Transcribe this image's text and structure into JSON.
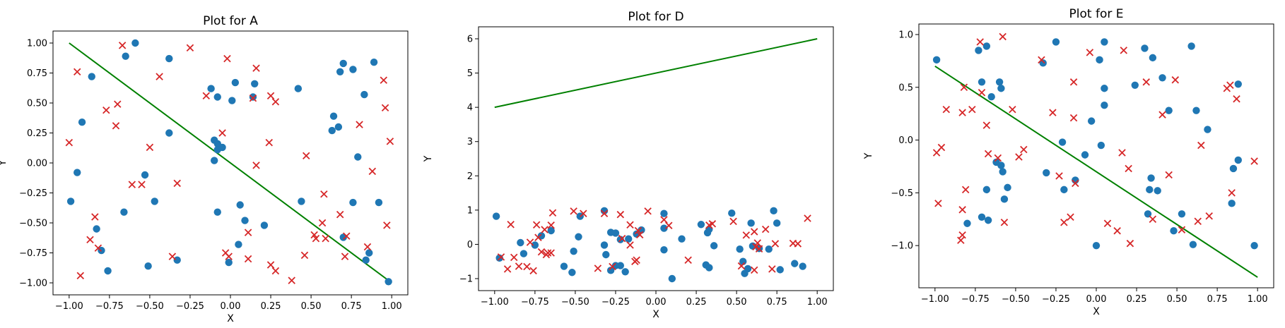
{
  "colors": {
    "points": "#1f77b4",
    "crosses": "#d62728",
    "line": "#008000",
    "axes": "#000000"
  },
  "chart_data": [
    {
      "type": "scatter",
      "title": "Plot for A",
      "xlabel": "X",
      "ylabel": "Y",
      "xlim": [
        -1.1,
        1.1
      ],
      "ylim": [
        -1.1,
        1.1
      ],
      "xticks": [
        -1.0,
        -0.75,
        -0.5,
        -0.25,
        0.0,
        0.25,
        0.5,
        0.75,
        1.0
      ],
      "xtick_labels": [
        "−1.00",
        "−0.75",
        "−0.50",
        "−0.25",
        "0.00",
        "0.25",
        "0.50",
        "0.75",
        "1.00"
      ],
      "yticks": [
        1.0,
        0.75,
        0.5,
        0.25,
        0.0,
        -0.25,
        -0.5,
        -0.75,
        -1.0
      ],
      "ytick_labels": [
        "1.00",
        "0.75",
        "0.50",
        "0.25",
        "0.00",
        "−0.25",
        "−0.50",
        "−0.75",
        "−1.00"
      ],
      "grid": false,
      "line": {
        "x": [
          -1.0,
          1.0
        ],
        "y": [
          1.0,
          -1.0
        ]
      },
      "points": [
        [
          -0.99,
          -0.32
        ],
        [
          -0.95,
          -0.08
        ],
        [
          -0.92,
          0.34
        ],
        [
          -0.86,
          0.72
        ],
        [
          -0.83,
          -0.55
        ],
        [
          -0.8,
          -0.73
        ],
        [
          -0.76,
          -0.9
        ],
        [
          -0.66,
          -0.41
        ],
        [
          -0.65,
          0.89
        ],
        [
          -0.59,
          1.0
        ],
        [
          -0.53,
          -0.1
        ],
        [
          -0.51,
          -0.86
        ],
        [
          -0.47,
          -0.32
        ],
        [
          -0.38,
          0.87
        ],
        [
          -0.38,
          0.25
        ],
        [
          -0.33,
          -0.81
        ],
        [
          -0.12,
          0.62
        ],
        [
          -0.08,
          0.55
        ],
        [
          -0.1,
          0.19
        ],
        [
          -0.08,
          0.16
        ],
        [
          -0.1,
          0.02
        ],
        [
          -0.08,
          0.11
        ],
        [
          -0.05,
          0.13
        ],
        [
          -0.08,
          -0.41
        ],
        [
          0.01,
          0.52
        ],
        [
          0.03,
          0.67
        ],
        [
          0.06,
          -0.35
        ],
        [
          0.05,
          -0.68
        ],
        [
          0.09,
          -0.48
        ],
        [
          0.14,
          0.55
        ],
        [
          0.15,
          0.66
        ],
        [
          0.21,
          -0.52
        ],
        [
          -0.01,
          -0.83
        ],
        [
          0.42,
          0.62
        ],
        [
          0.44,
          -0.32
        ],
        [
          0.63,
          0.27
        ],
        [
          0.64,
          0.39
        ],
        [
          0.67,
          0.3
        ],
        [
          0.68,
          0.76
        ],
        [
          0.7,
          0.83
        ],
        [
          0.7,
          -0.62
        ],
        [
          0.76,
          0.78
        ],
        [
          0.76,
          -0.33
        ],
        [
          0.79,
          0.05
        ],
        [
          0.83,
          0.57
        ],
        [
          0.84,
          -0.81
        ],
        [
          0.86,
          -0.75
        ],
        [
          0.89,
          0.84
        ],
        [
          0.92,
          -0.33
        ],
        [
          0.98,
          -0.99
        ]
      ],
      "crosses": [
        [
          -1.0,
          0.17
        ],
        [
          -0.95,
          0.76
        ],
        [
          -0.93,
          -0.94
        ],
        [
          -0.87,
          -0.64
        ],
        [
          -0.84,
          -0.45
        ],
        [
          -0.82,
          -0.71
        ],
        [
          -0.77,
          0.44
        ],
        [
          -0.71,
          0.31
        ],
        [
          -0.7,
          0.49
        ],
        [
          -0.67,
          0.98
        ],
        [
          -0.61,
          -0.18
        ],
        [
          -0.55,
          -0.18
        ],
        [
          -0.5,
          0.13
        ],
        [
          -0.44,
          0.72
        ],
        [
          -0.36,
          -0.78
        ],
        [
          -0.33,
          -0.17
        ],
        [
          -0.25,
          0.96
        ],
        [
          -0.15,
          0.56
        ],
        [
          -0.05,
          0.25
        ],
        [
          -0.03,
          -0.75
        ],
        [
          -0.02,
          0.87
        ],
        [
          -0.01,
          -0.78
        ],
        [
          0.11,
          -0.58
        ],
        [
          0.11,
          -0.8
        ],
        [
          0.14,
          0.54
        ],
        [
          0.16,
          0.79
        ],
        [
          0.16,
          -0.02
        ],
        [
          0.24,
          0.17
        ],
        [
          0.25,
          0.56
        ],
        [
          0.25,
          -0.85
        ],
        [
          0.28,
          0.51
        ],
        [
          0.28,
          -0.9
        ],
        [
          0.38,
          -0.98
        ],
        [
          0.46,
          -0.77
        ],
        [
          0.47,
          0.06
        ],
        [
          0.52,
          -0.6
        ],
        [
          0.53,
          -0.63
        ],
        [
          0.57,
          -0.5
        ],
        [
          0.58,
          -0.26
        ],
        [
          0.59,
          -0.63
        ],
        [
          0.68,
          -0.43
        ],
        [
          0.71,
          -0.78
        ],
        [
          0.72,
          -0.61
        ],
        [
          0.8,
          0.32
        ],
        [
          0.85,
          -0.7
        ],
        [
          0.88,
          -0.07
        ],
        [
          0.95,
          0.69
        ],
        [
          0.96,
          0.46
        ],
        [
          0.97,
          -0.52
        ],
        [
          0.99,
          0.18
        ]
      ]
    },
    {
      "type": "scatter",
      "title": "Plot for D",
      "xlabel": "X",
      "ylabel": "Y",
      "xlim": [
        -1.1,
        1.1
      ],
      "ylim": [
        -1.35,
        6.35
      ],
      "xticks": [
        -1.0,
        -0.75,
        -0.5,
        -0.25,
        0.0,
        0.25,
        0.5,
        0.75,
        1.0
      ],
      "xtick_labels": [
        "−1.00",
        "−0.75",
        "−0.50",
        "−0.25",
        "0.00",
        "0.25",
        "0.50",
        "0.75",
        "1.00"
      ],
      "yticks": [
        6,
        5,
        4,
        3,
        2,
        1,
        0,
        -1
      ],
      "ytick_labels": [
        "6",
        "5",
        "4",
        "3",
        "2",
        "1",
        "0",
        "−1"
      ],
      "grid": false,
      "line": {
        "x": [
          -1.0,
          1.0
        ],
        "y": [
          4.0,
          6.0
        ]
      },
      "points": [
        [
          -0.99,
          0.82
        ],
        [
          -0.97,
          -0.4
        ],
        [
          -0.84,
          0.05
        ],
        [
          -0.82,
          -0.27
        ],
        [
          -0.75,
          -0.02
        ],
        [
          -0.71,
          0.25
        ],
        [
          -0.65,
          0.4
        ],
        [
          -0.57,
          -0.64
        ],
        [
          -0.52,
          -0.82
        ],
        [
          -0.51,
          -0.2
        ],
        [
          -0.48,
          0.22
        ],
        [
          -0.47,
          0.82
        ],
        [
          -0.32,
          0.98
        ],
        [
          -0.32,
          -0.02
        ],
        [
          -0.31,
          -0.3
        ],
        [
          -0.28,
          -0.76
        ],
        [
          -0.28,
          0.35
        ],
        [
          -0.25,
          -0.62
        ],
        [
          -0.25,
          0.33
        ],
        [
          -0.22,
          0.14
        ],
        [
          -0.22,
          -0.62
        ],
        [
          -0.19,
          -0.8
        ],
        [
          -0.17,
          0.16
        ],
        [
          -0.12,
          0.3
        ],
        [
          -0.09,
          0.42
        ],
        [
          0.05,
          0.47
        ],
        [
          0.05,
          -0.16
        ],
        [
          0.05,
          0.9
        ],
        [
          0.1,
          -1.0
        ],
        [
          0.16,
          0.16
        ],
        [
          0.28,
          0.58
        ],
        [
          0.31,
          -0.6
        ],
        [
          0.32,
          0.34
        ],
        [
          0.33,
          0.44
        ],
        [
          0.33,
          -0.68
        ],
        [
          0.36,
          -0.04
        ],
        [
          0.47,
          0.91
        ],
        [
          0.52,
          -0.14
        ],
        [
          0.54,
          -0.5
        ],
        [
          0.55,
          -0.85
        ],
        [
          0.57,
          -0.71
        ],
        [
          0.59,
          0.62
        ],
        [
          0.6,
          -0.05
        ],
        [
          0.64,
          -0.12
        ],
        [
          0.7,
          -0.14
        ],
        [
          0.73,
          0.98
        ],
        [
          0.75,
          0.62
        ],
        [
          0.77,
          -0.74
        ],
        [
          0.86,
          -0.56
        ],
        [
          0.91,
          -0.64
        ]
      ],
      "crosses": [
        [
          -0.96,
          -0.37
        ],
        [
          -0.92,
          -0.72
        ],
        [
          -0.9,
          0.58
        ],
        [
          -0.88,
          -0.38
        ],
        [
          -0.85,
          -0.64
        ],
        [
          -0.78,
          0.06
        ],
        [
          -0.76,
          -0.77
        ],
        [
          -0.74,
          0.57
        ],
        [
          -0.73,
          0.2
        ],
        [
          -0.71,
          -0.22
        ],
        [
          -0.69,
          0.43
        ],
        [
          -0.68,
          -0.3
        ],
        [
          -0.67,
          -0.25
        ],
        [
          -0.65,
          -0.25
        ],
        [
          -0.65,
          0.56
        ],
        [
          -0.64,
          0.92
        ],
        [
          -0.51,
          0.97
        ],
        [
          -0.45,
          0.9
        ],
        [
          -0.36,
          -0.7
        ],
        [
          -0.32,
          0.9
        ],
        [
          -0.27,
          -0.65
        ],
        [
          -0.22,
          0.87
        ],
        [
          -0.21,
          0.17
        ],
        [
          -0.16,
          0.57
        ],
        [
          -0.16,
          -0.02
        ],
        [
          -0.13,
          -0.5
        ],
        [
          -0.12,
          -0.46
        ],
        [
          -0.11,
          0.4
        ],
        [
          -0.1,
          0.28
        ],
        [
          -0.05,
          0.97
        ],
        [
          0.05,
          0.72
        ],
        [
          0.08,
          0.55
        ],
        [
          0.2,
          -0.46
        ],
        [
          0.33,
          0.56
        ],
        [
          0.35,
          0.6
        ],
        [
          0.48,
          0.67
        ],
        [
          0.53,
          -0.63
        ],
        [
          0.56,
          0.27
        ],
        [
          0.61,
          -0.75
        ],
        [
          0.61,
          0.37
        ],
        [
          0.62,
          -0.07
        ],
        [
          0.63,
          0.04
        ],
        [
          0.64,
          -0.13
        ],
        [
          0.68,
          0.44
        ],
        [
          0.72,
          -0.72
        ],
        [
          0.74,
          0.02
        ],
        [
          0.85,
          0.03
        ],
        [
          0.88,
          0.02
        ],
        [
          0.94,
          0.76
        ],
        [
          -0.8,
          -0.65
        ]
      ]
    },
    {
      "type": "scatter",
      "title": "Plot for E",
      "xlabel": "X",
      "ylabel": "Y",
      "xlim": [
        -1.1,
        1.1
      ],
      "ylim": [
        -1.4,
        1.1
      ],
      "xticks": [
        -1.0,
        -0.75,
        -0.5,
        -0.25,
        0.0,
        0.25,
        0.5,
        0.75,
        1.0
      ],
      "xtick_labels": [
        "−1.00",
        "−0.75",
        "−0.50",
        "−0.25",
        "0.00",
        "0.25",
        "0.50",
        "0.75",
        "1.00"
      ],
      "yticks": [
        1.0,
        0.5,
        0.0,
        -0.5,
        -1.0
      ],
      "ytick_labels": [
        "1.0",
        "0.5",
        "0.0",
        "−0.5",
        "−1.0"
      ],
      "grid": false,
      "line": {
        "x": [
          -1.0,
          1.0
        ],
        "y": [
          0.7,
          -1.3
        ]
      },
      "points": [
        [
          -0.99,
          0.76
        ],
        [
          -0.73,
          0.85
        ],
        [
          -0.71,
          0.55
        ],
        [
          -0.68,
          0.89
        ],
        [
          -0.65,
          0.41
        ],
        [
          -0.6,
          0.55
        ],
        [
          -0.59,
          0.49
        ],
        [
          -0.62,
          -0.21
        ],
        [
          -0.59,
          -0.24
        ],
        [
          -0.58,
          -0.3
        ],
        [
          -0.68,
          -0.47
        ],
        [
          -0.71,
          -0.73
        ],
        [
          -0.67,
          -0.76
        ],
        [
          -0.57,
          -0.56
        ],
        [
          -0.55,
          -0.45
        ],
        [
          -0.25,
          0.93
        ],
        [
          -0.21,
          -0.02
        ],
        [
          -0.2,
          -0.47
        ],
        [
          -0.31,
          -0.31
        ],
        [
          -0.13,
          -0.38
        ],
        [
          -0.07,
          -0.14
        ],
        [
          -0.03,
          0.18
        ],
        [
          0.0,
          -1.0
        ],
        [
          0.02,
          0.76
        ],
        [
          0.03,
          -0.05
        ],
        [
          0.05,
          0.93
        ],
        [
          0.05,
          0.49
        ],
        [
          0.05,
          0.33
        ],
        [
          0.24,
          0.52
        ],
        [
          0.3,
          0.87
        ],
        [
          0.32,
          -0.7
        ],
        [
          0.34,
          -0.36
        ],
        [
          0.33,
          -0.47
        ],
        [
          0.35,
          0.78
        ],
        [
          0.38,
          -0.48
        ],
        [
          0.41,
          0.59
        ],
        [
          0.45,
          0.28
        ],
        [
          0.48,
          -0.86
        ],
        [
          0.53,
          -0.7
        ],
        [
          0.59,
          0.89
        ],
        [
          0.6,
          -0.99
        ],
        [
          0.62,
          0.28
        ],
        [
          0.69,
          0.1
        ],
        [
          0.84,
          -0.6
        ],
        [
          0.85,
          -0.27
        ],
        [
          0.88,
          -0.19
        ],
        [
          0.88,
          0.53
        ],
        [
          0.98,
          -1.0
        ],
        [
          -0.33,
          0.73
        ],
        [
          -0.8,
          -0.79
        ]
      ],
      "crosses": [
        [
          -0.99,
          -0.12
        ],
        [
          -0.98,
          -0.6
        ],
        [
          -0.96,
          -0.07
        ],
        [
          -0.93,
          0.29
        ],
        [
          -0.83,
          0.26
        ],
        [
          -0.82,
          0.5
        ],
        [
          -0.83,
          -0.66
        ],
        [
          -0.83,
          -0.9
        ],
        [
          -0.84,
          -0.95
        ],
        [
          -0.81,
          -0.47
        ],
        [
          -0.77,
          0.29
        ],
        [
          -0.72,
          0.93
        ],
        [
          -0.71,
          0.45
        ],
        [
          -0.68,
          0.14
        ],
        [
          -0.67,
          -0.13
        ],
        [
          -0.61,
          -0.17
        ],
        [
          -0.58,
          0.98
        ],
        [
          -0.57,
          -0.78
        ],
        [
          -0.52,
          0.29
        ],
        [
          -0.48,
          -0.16
        ],
        [
          -0.45,
          -0.09
        ],
        [
          -0.34,
          0.76
        ],
        [
          -0.27,
          0.26
        ],
        [
          -0.23,
          -0.34
        ],
        [
          -0.2,
          -0.78
        ],
        [
          -0.16,
          -0.73
        ],
        [
          -0.14,
          0.21
        ],
        [
          -0.14,
          0.55
        ],
        [
          -0.13,
          -0.41
        ],
        [
          -0.04,
          0.83
        ],
        [
          0.07,
          -0.79
        ],
        [
          0.13,
          -0.86
        ],
        [
          0.16,
          -0.12
        ],
        [
          0.17,
          0.85
        ],
        [
          0.2,
          -0.27
        ],
        [
          0.21,
          -0.98
        ],
        [
          0.31,
          0.55
        ],
        [
          0.35,
          -0.75
        ],
        [
          0.41,
          0.24
        ],
        [
          0.45,
          -0.33
        ],
        [
          0.49,
          0.57
        ],
        [
          0.53,
          -0.85
        ],
        [
          0.63,
          -0.77
        ],
        [
          0.65,
          -0.05
        ],
        [
          0.7,
          -0.72
        ],
        [
          0.81,
          0.49
        ],
        [
          0.83,
          0.52
        ],
        [
          0.84,
          -0.5
        ],
        [
          0.87,
          0.39
        ],
        [
          0.98,
          -0.2
        ]
      ]
    }
  ]
}
